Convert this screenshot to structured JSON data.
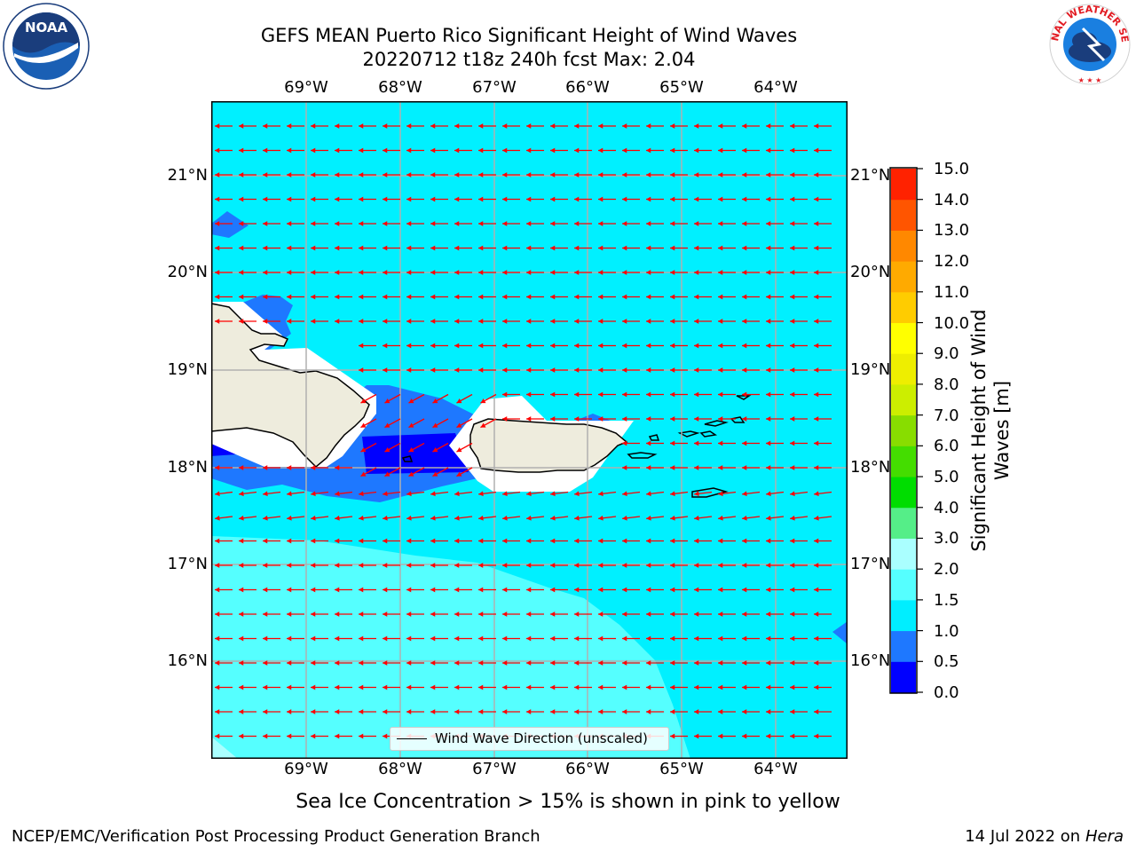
{
  "title_line1": "GEFS MEAN Puerto Rico Significant Height of Wind Waves",
  "title_line2": "20220712 t18z 240h fcst   Max: 2.04",
  "lon_labels": [
    "69°W",
    "68°W",
    "67°W",
    "66°W",
    "65°W",
    "64°W"
  ],
  "lat_labels": [
    "21°N",
    "20°N",
    "19°N",
    "18°N",
    "17°N",
    "16°N"
  ],
  "colorbar": {
    "label": "Significant Height of Wind Waves [m]",
    "label_line1": "Significant Height of Wind",
    "label_line2": "Waves [m]",
    "ticks": [
      "0.0",
      "0.5",
      "1.0",
      "1.5",
      "2.0",
      "3.0",
      "4.0",
      "5.0",
      "6.0",
      "7.0",
      "8.0",
      "9.0",
      "10.0",
      "11.0",
      "12.0",
      "13.0",
      "14.0",
      "15.0"
    ],
    "colors": [
      "#0000ff",
      "#1e78ff",
      "#00eeff",
      "#55ffff",
      "#aaffff",
      "#55ee88",
      "#00dd00",
      "#44dd00",
      "#88dd00",
      "#ccee00",
      "#eeee00",
      "#ffff00",
      "#ffcc00",
      "#ffaa00",
      "#ff8800",
      "#ff5500",
      "#ff2200",
      "#ff0000"
    ]
  },
  "legend_label": "Wind Wave Direction (unscaled)",
  "sea_ice_note": "Sea Ice Concentration > 15% is shown in pink to yellow",
  "footer_left": "NCEP/EMC/Verification Post Processing Product Generation Branch",
  "footer_date": "14 Jul 2022 on",
  "footer_host": "Hera",
  "colors": {
    "ocean_base": "#00f0ff",
    "band_1_1_5": "#1e78ff",
    "band_1_5_2": "#55ffff",
    "band_0_0_5": "#0000ff",
    "land": "#eeecdd",
    "arrow": "#ff0000",
    "grid": "#b0b0b0"
  }
}
